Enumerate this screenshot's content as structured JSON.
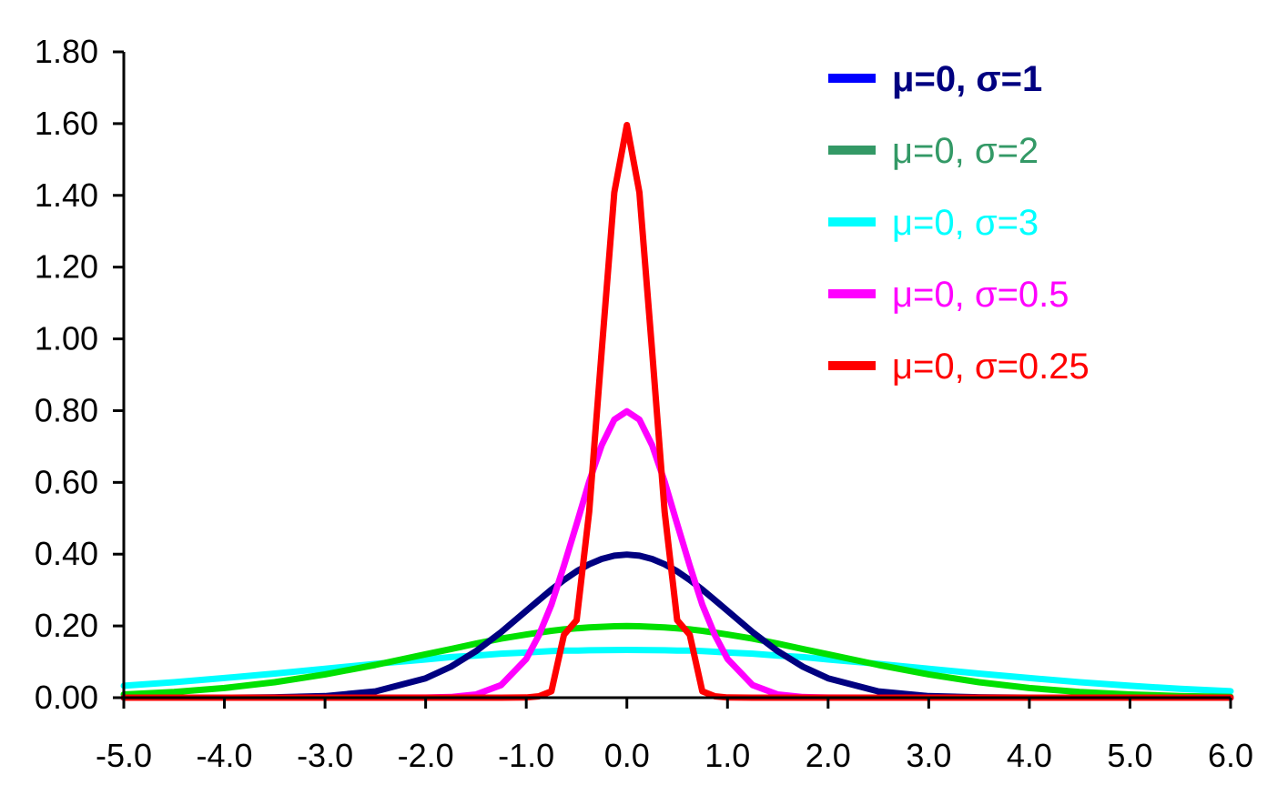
{
  "chart_data": {
    "type": "line",
    "title": "",
    "xlabel": "",
    "ylabel": "",
    "xlim": [
      -5.0,
      6.0
    ],
    "ylim": [
      0.0,
      1.8
    ],
    "grid": false,
    "legend_position": "top-right",
    "x_ticks": [
      "-5.0",
      "-4.0",
      "-3.0",
      "-2.0",
      "-1.0",
      "0.0",
      "1.0",
      "2.0",
      "3.0",
      "4.0",
      "5.0",
      "6.0"
    ],
    "y_ticks": [
      "0.00",
      "0.20",
      "0.40",
      "0.60",
      "0.80",
      "1.00",
      "1.20",
      "1.40",
      "1.60",
      "1.80"
    ],
    "x": [
      -5.0,
      -4.5,
      -4.0,
      -3.5,
      -3.0,
      -2.5,
      -2.0,
      -1.75,
      -1.5,
      -1.25,
      -1.0,
      -0.875,
      -0.75,
      -0.625,
      -0.5,
      -0.375,
      -0.25,
      -0.125,
      0.0,
      0.125,
      0.25,
      0.375,
      0.5,
      0.625,
      0.75,
      0.875,
      1.0,
      1.25,
      1.5,
      1.75,
      2.0,
      2.5,
      3.0,
      3.5,
      4.0,
      4.5,
      5.0,
      5.5,
      6.0
    ],
    "series": [
      {
        "name": "μ=0, σ=1",
        "line_color": "#000080",
        "legend_swatch_color": "#0000FF",
        "legend_text_color": "#000080",
        "values": [
          0.0,
          0.0,
          0.0001,
          0.0009,
          0.0044,
          0.0175,
          0.054,
          0.0863,
          0.1295,
          0.1826,
          0.242,
          0.2717,
          0.3011,
          0.3281,
          0.3521,
          0.3719,
          0.3867,
          0.3958,
          0.3989,
          0.3958,
          0.3867,
          0.3719,
          0.3521,
          0.3281,
          0.3011,
          0.2717,
          0.242,
          0.1826,
          0.1295,
          0.0863,
          0.054,
          0.0175,
          0.0044,
          0.0009,
          0.0001,
          0.0,
          0.0,
          0.0,
          0.0
        ]
      },
      {
        "name": "μ=0, σ=2",
        "line_color": "#00E000",
        "legend_swatch_color": "#339966",
        "legend_text_color": "#339966",
        "values": [
          0.0088,
          0.0159,
          0.027,
          0.0431,
          0.0648,
          0.0913,
          0.121,
          0.1355,
          0.1506,
          0.1646,
          0.176,
          0.1812,
          0.1863,
          0.1905,
          0.1933,
          0.1959,
          0.1976,
          0.1989,
          0.1995,
          0.1989,
          0.1976,
          0.1959,
          0.1933,
          0.1905,
          0.1863,
          0.1812,
          0.176,
          0.1646,
          0.1506,
          0.1355,
          0.121,
          0.0913,
          0.0648,
          0.0431,
          0.027,
          0.0159,
          0.0088,
          0.0045,
          0.0022
        ]
      },
      {
        "name": "μ=0, σ=3",
        "line_color": "#00FFFF",
        "legend_swatch_color": "#00FFFF",
        "legend_text_color": "#00FFFF",
        "values": [
          0.0332,
          0.0432,
          0.0547,
          0.0673,
          0.0807,
          0.0943,
          0.1065,
          0.1131,
          0.1174,
          0.1227,
          0.1258,
          0.128,
          0.1298,
          0.1313,
          0.1311,
          0.132,
          0.1325,
          0.1328,
          0.133,
          0.1328,
          0.1325,
          0.132,
          0.1311,
          0.1313,
          0.1298,
          0.128,
          0.1258,
          0.1227,
          0.1174,
          0.1131,
          0.1065,
          0.0943,
          0.0807,
          0.0673,
          0.0547,
          0.0432,
          0.0332,
          0.0247,
          0.018
        ]
      },
      {
        "name": "μ=0, σ=0.5",
        "line_color": "#FF00FF",
        "legend_swatch_color": "#FF00FF",
        "legend_text_color": "#FF00FF",
        "values": [
          0.0,
          0.0,
          0.0,
          0.0,
          0.0,
          0.0,
          0.0003,
          0.0019,
          0.0089,
          0.035,
          0.108,
          0.174,
          0.259,
          0.368,
          0.484,
          0.602,
          0.704,
          0.775,
          0.798,
          0.775,
          0.704,
          0.602,
          0.484,
          0.368,
          0.259,
          0.174,
          0.108,
          0.035,
          0.0089,
          0.0019,
          0.0003,
          0.0,
          0.0,
          0.0,
          0.0,
          0.0,
          0.0,
          0.0,
          0.0
        ]
      },
      {
        "name": "μ=0, σ=0.25",
        "line_color": "#FF0000",
        "legend_swatch_color": "#FF0000",
        "legend_text_color": "#FF0000",
        "values": [
          0.0,
          0.0,
          0.0,
          0.0,
          0.0,
          0.0,
          0.0,
          0.0,
          0.0,
          0.0,
          0.0005,
          0.0038,
          0.0177,
          0.1752,
          0.216,
          0.518,
          0.968,
          1.408,
          1.596,
          1.408,
          0.968,
          0.518,
          0.216,
          0.1752,
          0.0177,
          0.0038,
          0.0005,
          0.0,
          0.0,
          0.0,
          0.0,
          0.0,
          0.0,
          0.0,
          0.0,
          0.0,
          0.0,
          0.0,
          0.0
        ]
      }
    ]
  }
}
